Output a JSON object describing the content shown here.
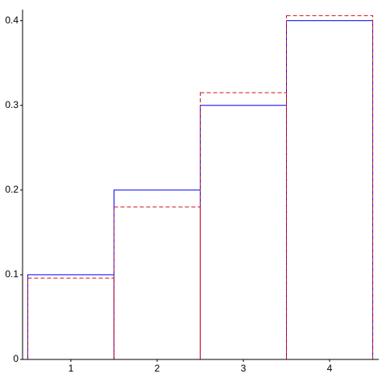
{
  "chart_data": {
    "type": "histogram",
    "bins": [
      0.5,
      1.5,
      2.5,
      3.5,
      4.5
    ],
    "series": [
      {
        "color": "#0000ff",
        "dashed": false,
        "values": [
          0.1,
          0.2,
          0.3,
          0.4
        ]
      },
      {
        "color": "#d01020",
        "dashed": true,
        "values": [
          0.096,
          0.18,
          0.315,
          0.406
        ]
      }
    ],
    "xlim": [
      0.44,
      4.57
    ],
    "xticks": [
      1,
      2,
      3,
      4
    ],
    "ylim": [
      0,
      0.413
    ],
    "yticks": [
      0,
      0.1,
      0.2,
      0.3,
      0.4
    ],
    "grid": false
  }
}
